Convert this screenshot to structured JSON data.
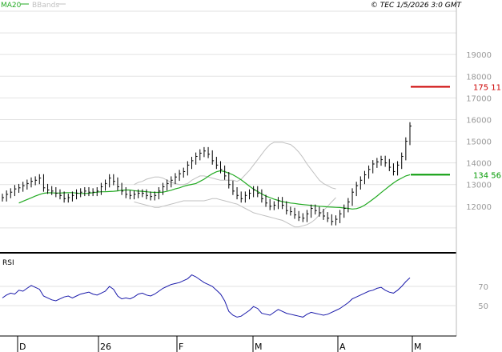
{
  "legend": {
    "ma": "MA20",
    "bands": "BBands"
  },
  "copyright": "© TEC 1/5/2026 3:0 GMT",
  "colors": {
    "ma": "#22aa22",
    "bands": "#c0c0c0",
    "price": "#000000",
    "resistance": "#cc0000",
    "support": "#009900",
    "rsi": "#1a1aaa",
    "grid": "#e2e2e2",
    "axisText": "#999999"
  },
  "chart_data": [
    {
      "type": "bar",
      "title": "",
      "ylim": [
        10000,
        21000
      ],
      "ytick_labels": [
        "19000",
        "18000",
        "17000",
        "16000",
        "15000",
        "14000",
        "13000",
        "12000"
      ],
      "levels": [
        {
          "label": "175 11",
          "value": 17511,
          "color": "#cc0000"
        },
        {
          "label": "134 56",
          "value": 13456,
          "color": "#009900"
        }
      ],
      "x_labels": [
        "D",
        "26",
        "F",
        "M",
        "A",
        "M"
      ],
      "price_series": [
        12400,
        12550,
        12650,
        12800,
        12850,
        12950,
        13050,
        13150,
        13200,
        13300,
        12850,
        12750,
        12700,
        12600,
        12500,
        12350,
        12400,
        12500,
        12600,
        12650,
        12700,
        12650,
        12650,
        12700,
        12900,
        13050,
        13300,
        13150,
        12900,
        12700,
        12550,
        12500,
        12550,
        12600,
        12600,
        12500,
        12450,
        12500,
        12700,
        12900,
        13050,
        13200,
        13350,
        13500,
        13600,
        13900,
        14100,
        14300,
        14450,
        14550,
        14400,
        14100,
        13900,
        13700,
        13400,
        13000,
        12700,
        12500,
        12350,
        12500,
        12600,
        12750,
        12600,
        12350,
        12150,
        12000,
        12050,
        12250,
        12050,
        11800,
        11750,
        11600,
        11500,
        11450,
        11650,
        11900,
        11800,
        11700,
        11550,
        11450,
        11300,
        11400,
        11650,
        11900,
        12200,
        12650,
        12950,
        13200,
        13450,
        13700,
        13950,
        14050,
        14150,
        14000,
        13800,
        13600,
        13900,
        14300,
        15000,
        15700
      ],
      "ma20": [
        12150,
        12230,
        12310,
        12390,
        12470,
        12540,
        12600,
        12620,
        12620,
        12610,
        12610,
        12620,
        12630,
        12630,
        12610,
        12590,
        12590,
        12600,
        12630,
        12650,
        12670,
        12670,
        12680,
        12690,
        12710,
        12740,
        12750,
        12750,
        12720,
        12700,
        12690,
        12670,
        12650,
        12640,
        12640,
        12650,
        12690,
        12740,
        12800,
        12850,
        12920,
        12970,
        13010,
        13050,
        13150,
        13250,
        13380,
        13500,
        13590,
        13640,
        13600,
        13530,
        13450,
        13340,
        13220,
        13080,
        12930,
        12790,
        12680,
        12570,
        12470,
        12400,
        12330,
        12270,
        12210,
        12180,
        12150,
        12130,
        12100,
        12080,
        12060,
        12040,
        12020,
        12000,
        11990,
        11970,
        11960,
        11950,
        11940,
        11920,
        11900,
        11870,
        11890,
        11950,
        12050,
        12180,
        12320,
        12470,
        12630,
        12780,
        12930,
        13070,
        13200,
        13300,
        13400,
        13456
      ],
      "bb_upper": [
        null,
        null,
        null,
        null,
        null,
        null,
        null,
        null,
        null,
        null,
        13000,
        13100,
        13150,
        13250,
        13300,
        13350,
        13350,
        13300,
        13200,
        13100,
        13050,
        13000,
        13000,
        13050,
        13200,
        13300,
        13400,
        13400,
        13350,
        13300,
        13250,
        13200,
        13200,
        13200,
        13200,
        13150,
        13250,
        13450,
        13650,
        13900,
        14150,
        14400,
        14650,
        14850,
        14950,
        14950,
        14950,
        14900,
        14850,
        14700,
        14500,
        14250,
        13950,
        13700,
        13450,
        13200,
        13050,
        12950,
        12850,
        12800
      ],
      "bb_lower": [
        null,
        null,
        null,
        null,
        null,
        null,
        null,
        null,
        null,
        null,
        12200,
        12150,
        12100,
        12050,
        12000,
        11950,
        11950,
        12000,
        12050,
        12100,
        12150,
        12200,
        12250,
        12250,
        12250,
        12250,
        12250,
        12250,
        12300,
        12350,
        12350,
        12300,
        12250,
        12200,
        12150,
        12100,
        12000,
        11900,
        11800,
        11700,
        11650,
        11600,
        11550,
        11500,
        11450,
        11400,
        11350,
        11250,
        11150,
        11050,
        11050,
        11100,
        11150,
        11250,
        11400,
        11600,
        11800,
        12000,
        12200,
        12400
      ],
      "xlabel": "",
      "ylabel": ""
    },
    {
      "type": "line",
      "title": "RSI",
      "ylim": [
        20,
        100
      ],
      "ytick_labels": [
        "70",
        "50"
      ],
      "series": [
        {
          "values": [
            58,
            61,
            63,
            62,
            66,
            65,
            68,
            71,
            69,
            67,
            60,
            58,
            56,
            55,
            57,
            59,
            60,
            58,
            60,
            62,
            63,
            64,
            62,
            61,
            63,
            65,
            70,
            67,
            60,
            57,
            58,
            57,
            59,
            62,
            63,
            61,
            60,
            62,
            65,
            68,
            70,
            72,
            73,
            74,
            76,
            78,
            82,
            80,
            77,
            74,
            72,
            70,
            66,
            62,
            55,
            44,
            40,
            38,
            39,
            42,
            45,
            49,
            47,
            42,
            41,
            40,
            43,
            46,
            44,
            42,
            41,
            40,
            39,
            38,
            41,
            43,
            42,
            41,
            40,
            41,
            43,
            45,
            47,
            50,
            53,
            57,
            59,
            61,
            63,
            65,
            66,
            68,
            69,
            66,
            64,
            63,
            66,
            70,
            75,
            79
          ]
        }
      ],
      "xlabel": "",
      "ylabel": ""
    }
  ]
}
